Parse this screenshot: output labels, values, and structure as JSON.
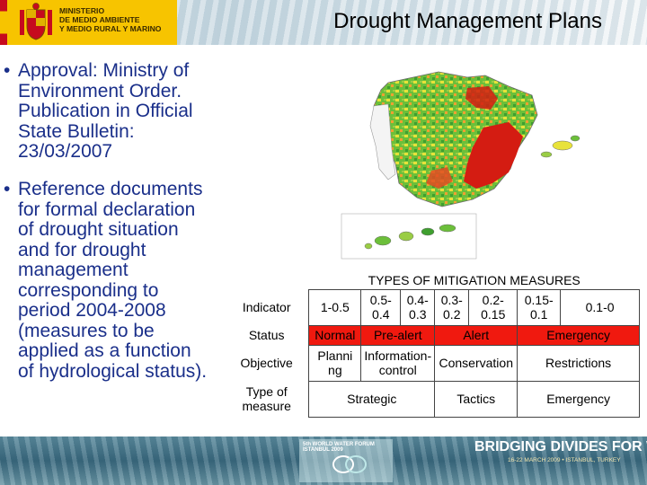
{
  "header": {
    "logo_lines": [
      "MINISTERIO",
      "DE MEDIO AMBIENTE",
      "Y MEDIO RURAL Y MARINO"
    ],
    "title": "Drought Management Plans"
  },
  "bullets": [
    {
      "lines": [
        "Approval: Ministry of",
        "Environment Order.",
        "Publication in Official",
        "State Bulletin:",
        "23/03/2007"
      ]
    },
    {
      "lines": [
        "Reference documents",
        "for formal declaration",
        "of drought situation",
        "and for drought",
        "management",
        "corresponding to",
        "period 2004-2008",
        "(measures to be",
        "applied as a function",
        "of hydrological status)."
      ]
    }
  ],
  "table": {
    "caption": "TYPES OF MITIGATION MEASURES",
    "indicator_label": "Indicator",
    "indicator_values": [
      "1-0.5",
      "0.5-\n0.4",
      "0.4-0.3",
      "0.3-0.2",
      "0.2-\n0.15",
      "0.15-\n0.1",
      "0.1-0"
    ],
    "status_label": "Status",
    "status_values": [
      "Normal",
      "Pre-alert",
      "Alert",
      "Emergency"
    ],
    "objective_label": "Objective",
    "objective_values": [
      "Planni\nng",
      "Information-\ncontrol",
      "Conservation",
      "Restrictions"
    ],
    "measure_label": "Type of\nmeasure",
    "measure_values": [
      "Strategic",
      "Tactics",
      "Emergency"
    ]
  },
  "colors": {
    "emergency_red": "#f0190f",
    "bullet_blue": "#1a2f8a",
    "logo_yellow": "#f7c400"
  },
  "footer": {
    "forum_name": "5th WORLD WATER FORUM",
    "forum_city": "ISTANBUL 2009",
    "slogan": "BRIDGING DIVIDES FOR WATER",
    "dates": "16-22 MARCH 2009 • ISTANBUL, TURKEY"
  }
}
